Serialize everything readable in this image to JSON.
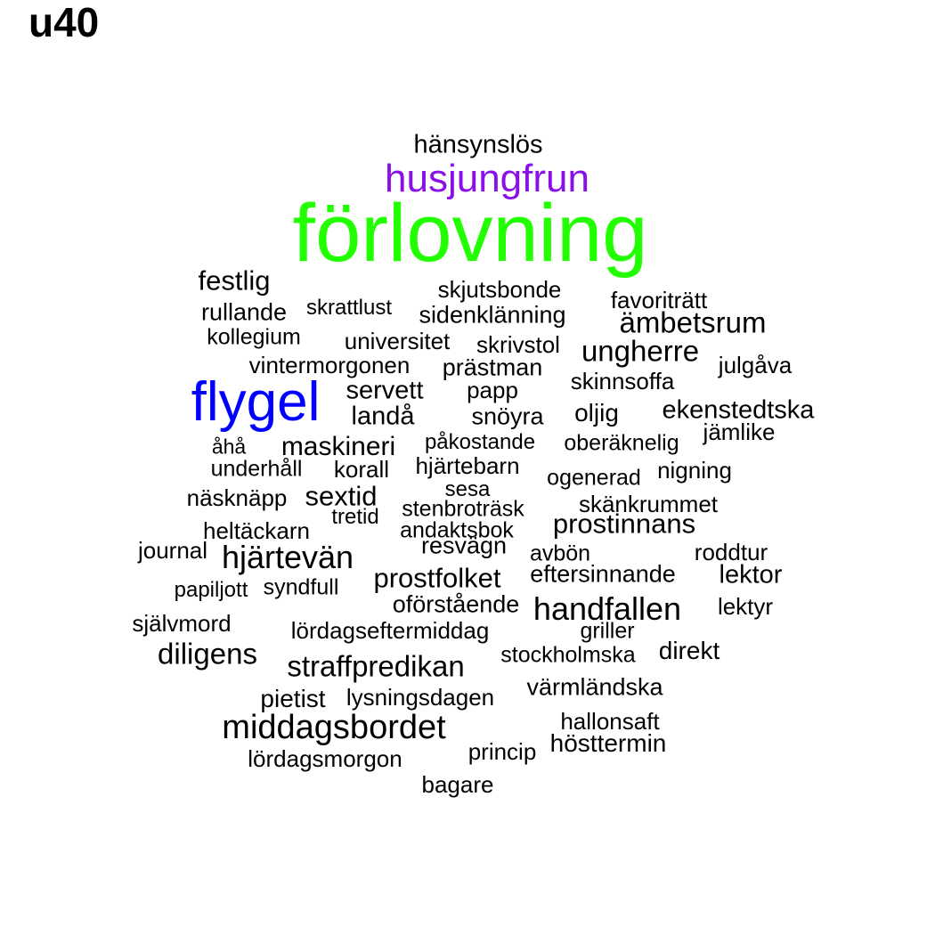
{
  "title": "u40",
  "colors": {
    "black": "#000000",
    "green": "#22ff00",
    "blue": "#0000ff",
    "purple": "#8b10e8"
  },
  "words": [
    {
      "text": "hänsynslös",
      "color": "black"
    },
    {
      "text": "husjungfrun",
      "color": "purple"
    },
    {
      "text": "förlovning",
      "color": "green"
    },
    {
      "text": "festlig",
      "color": "black"
    },
    {
      "text": "skjutsbonde",
      "color": "black"
    },
    {
      "text": "favoriträtt",
      "color": "black"
    },
    {
      "text": "rullande",
      "color": "black"
    },
    {
      "text": "skrattlust",
      "color": "black"
    },
    {
      "text": "sidenklänning",
      "color": "black"
    },
    {
      "text": "ämbetsrum",
      "color": "black"
    },
    {
      "text": "kollegium",
      "color": "black"
    },
    {
      "text": "universitet",
      "color": "black"
    },
    {
      "text": "skrivstol",
      "color": "black"
    },
    {
      "text": "ungherre",
      "color": "black"
    },
    {
      "text": "vintermorgonen",
      "color": "black"
    },
    {
      "text": "prästman",
      "color": "black"
    },
    {
      "text": "julgåva",
      "color": "black"
    },
    {
      "text": "skinnsoffa",
      "color": "black"
    },
    {
      "text": "flygel",
      "color": "blue"
    },
    {
      "text": "servett",
      "color": "black"
    },
    {
      "text": "papp",
      "color": "black"
    },
    {
      "text": "landå",
      "color": "black"
    },
    {
      "text": "snöyra",
      "color": "black"
    },
    {
      "text": "oljig",
      "color": "black"
    },
    {
      "text": "ekenstedtska",
      "color": "black"
    },
    {
      "text": "jämlike",
      "color": "black"
    },
    {
      "text": "åhå",
      "color": "black"
    },
    {
      "text": "maskineri",
      "color": "black"
    },
    {
      "text": "påkostande",
      "color": "black"
    },
    {
      "text": "oberäknelig",
      "color": "black"
    },
    {
      "text": "underhåll",
      "color": "black"
    },
    {
      "text": "korall",
      "color": "black"
    },
    {
      "text": "hjärtebarn",
      "color": "black"
    },
    {
      "text": "ogenerad",
      "color": "black"
    },
    {
      "text": "nigning",
      "color": "black"
    },
    {
      "text": "sesa",
      "color": "black"
    },
    {
      "text": "näsknäpp",
      "color": "black"
    },
    {
      "text": "sextid",
      "color": "black"
    },
    {
      "text": "stenbroträsk",
      "color": "black"
    },
    {
      "text": "skänkrummet",
      "color": "black"
    },
    {
      "text": "tretid",
      "color": "black"
    },
    {
      "text": "prostinnans",
      "color": "black"
    },
    {
      "text": "heltäckarn",
      "color": "black"
    },
    {
      "text": "andaktsbok",
      "color": "black"
    },
    {
      "text": "resvägn",
      "color": "black"
    },
    {
      "text": "journal",
      "color": "black"
    },
    {
      "text": "hjärtevän",
      "color": "black"
    },
    {
      "text": "avbön",
      "color": "black"
    },
    {
      "text": "roddtur",
      "color": "black"
    },
    {
      "text": "eftersinnande",
      "color": "black"
    },
    {
      "text": "lektor",
      "color": "black"
    },
    {
      "text": "prostfolket",
      "color": "black"
    },
    {
      "text": "papiljott",
      "color": "black"
    },
    {
      "text": "syndfull",
      "color": "black"
    },
    {
      "text": "oförstående",
      "color": "black"
    },
    {
      "text": "handfallen",
      "color": "black"
    },
    {
      "text": "lektyr",
      "color": "black"
    },
    {
      "text": "självmord",
      "color": "black"
    },
    {
      "text": "lördagseftermiddag",
      "color": "black"
    },
    {
      "text": "griller",
      "color": "black"
    },
    {
      "text": "diligens",
      "color": "black"
    },
    {
      "text": "stockholmska",
      "color": "black"
    },
    {
      "text": "direkt",
      "color": "black"
    },
    {
      "text": "straffpredikan",
      "color": "black"
    },
    {
      "text": "värmländska",
      "color": "black"
    },
    {
      "text": "pietist",
      "color": "black"
    },
    {
      "text": "lysningsdagen",
      "color": "black"
    },
    {
      "text": "middagsbordet",
      "color": "black"
    },
    {
      "text": "hallonsaft",
      "color": "black"
    },
    {
      "text": "hösttermin",
      "color": "black"
    },
    {
      "text": "princip",
      "color": "black"
    },
    {
      "text": "lördagsmorgon",
      "color": "black"
    },
    {
      "text": "bagare",
      "color": "black"
    }
  ]
}
